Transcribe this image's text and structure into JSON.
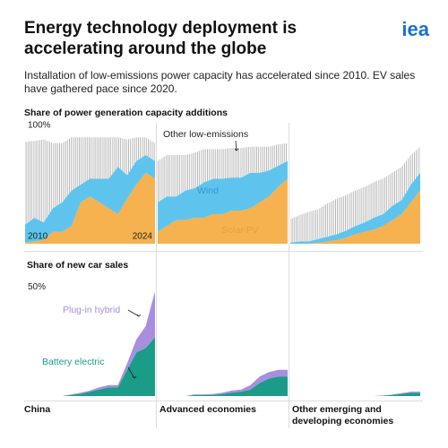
{
  "header": {
    "title": "Energy technology deployment is accelerating around the globe",
    "subtitle": "Installation of low-emissions power capacity has accelerated since 2010. EV sales have gathered pace since 2020.",
    "logo": "iea"
  },
  "regions": [
    "China",
    "Advanced economies",
    "Other emerging and developing economies"
  ],
  "chart_data": [
    {
      "type": "stacked-area",
      "title": "Share of power generation capacity additions",
      "x": [
        2010,
        2011,
        2012,
        2013,
        2014,
        2015,
        2016,
        2017,
        2018,
        2019,
        2020,
        2021,
        2022,
        2023,
        2024
      ],
      "xlim": [
        2010,
        2024
      ],
      "xticks": [
        2010,
        2024
      ],
      "ylim": [
        0,
        100
      ],
      "yticks": [
        {
          "value": 100,
          "label": "100%"
        }
      ],
      "series": [
        {
          "name": "Solar PV",
          "color": "#f6b24e",
          "values": [
            [
              1,
              2,
              3,
              10,
              10,
              15,
              35,
              40,
              35,
              30,
              25,
              38,
              50,
              60,
              55
            ],
            [
              10,
              15,
              20,
              20,
              22,
              22,
              25,
              25,
              28,
              28,
              30,
              35,
              40,
              48,
              55
            ],
            [
              0,
              0,
              0,
              1,
              2,
              3,
              5,
              8,
              10,
              12,
              15,
              20,
              25,
              35,
              45
            ]
          ]
        },
        {
          "name": "Wind",
          "color": "#5ec4ee",
          "values": [
            [
              15,
              20,
              15,
              20,
              25,
              30,
              15,
              15,
              20,
              25,
              40,
              20,
              20,
              15,
              15
            ],
            [
              25,
              25,
              20,
              25,
              25,
              30,
              30,
              30,
              28,
              28,
              30,
              25,
              22,
              18,
              15
            ],
            [
              1,
              2,
              2,
              3,
              4,
              5,
              6,
              7,
              8,
              10,
              10,
              12,
              12,
              15,
              15
            ]
          ]
        },
        {
          "name": "Other low-emissions",
          "color": "#9a9a9a",
          "pattern": "hatch",
          "values": [
            [
              70,
              65,
              70,
              55,
              50,
              45,
              40,
              35,
              35,
              35,
              25,
              30,
              20,
              15,
              15
            ],
            [
              35,
              35,
              35,
              30,
              30,
              28,
              25,
              25,
              25,
              25,
              22,
              22,
              20,
              18,
              15
            ],
            [
              20,
              22,
              25,
              25,
              28,
              30,
              30,
              30,
              30,
              30,
              30,
              28,
              28,
              25,
              22
            ]
          ]
        }
      ]
    },
    {
      "type": "stacked-area",
      "title": "Share of new car sales",
      "x": [
        2010,
        2011,
        2012,
        2013,
        2014,
        2015,
        2016,
        2017,
        2018,
        2019,
        2020,
        2021,
        2022,
        2023,
        2024
      ],
      "xlim": [
        2010,
        2024
      ],
      "ylim": [
        0,
        55
      ],
      "yticks": [
        {
          "value": 50,
          "label": "50%"
        }
      ],
      "series": [
        {
          "name": "Battery electric",
          "color": "#1a9c88",
          "values": [
            [
              0,
              0,
              0,
              0,
              0,
              0.5,
              1,
              2,
              3,
              4,
              4,
              12,
              20,
              22,
              27
            ],
            [
              0,
              0,
              0,
              0,
              0.5,
              0.5,
              0.5,
              1,
              1.5,
              2,
              3,
              6,
              8,
              9,
              9
            ],
            [
              0,
              0,
              0,
              0,
              0,
              0,
              0,
              0,
              0,
              0,
              0.2,
              0.5,
              1,
              1.5,
              1.5
            ]
          ]
        },
        {
          "name": "Plug-in hybrid",
          "color": "#a98ee0",
          "values": [
            [
              0,
              0,
              0,
              0,
              0,
              0.3,
              0.5,
              0.5,
              1,
              1,
              1,
              3,
              6,
              10,
              21
            ],
            [
              0,
              0,
              0,
              0,
              0.3,
              0.3,
              0.5,
              0.5,
              1,
              1,
              2,
              3,
              3,
              3,
              3
            ],
            [
              0,
              0,
              0,
              0,
              0,
              0,
              0,
              0,
              0,
              0,
              0,
              0.2,
              0.3,
              0.5,
              0.5
            ]
          ]
        }
      ]
    }
  ]
}
